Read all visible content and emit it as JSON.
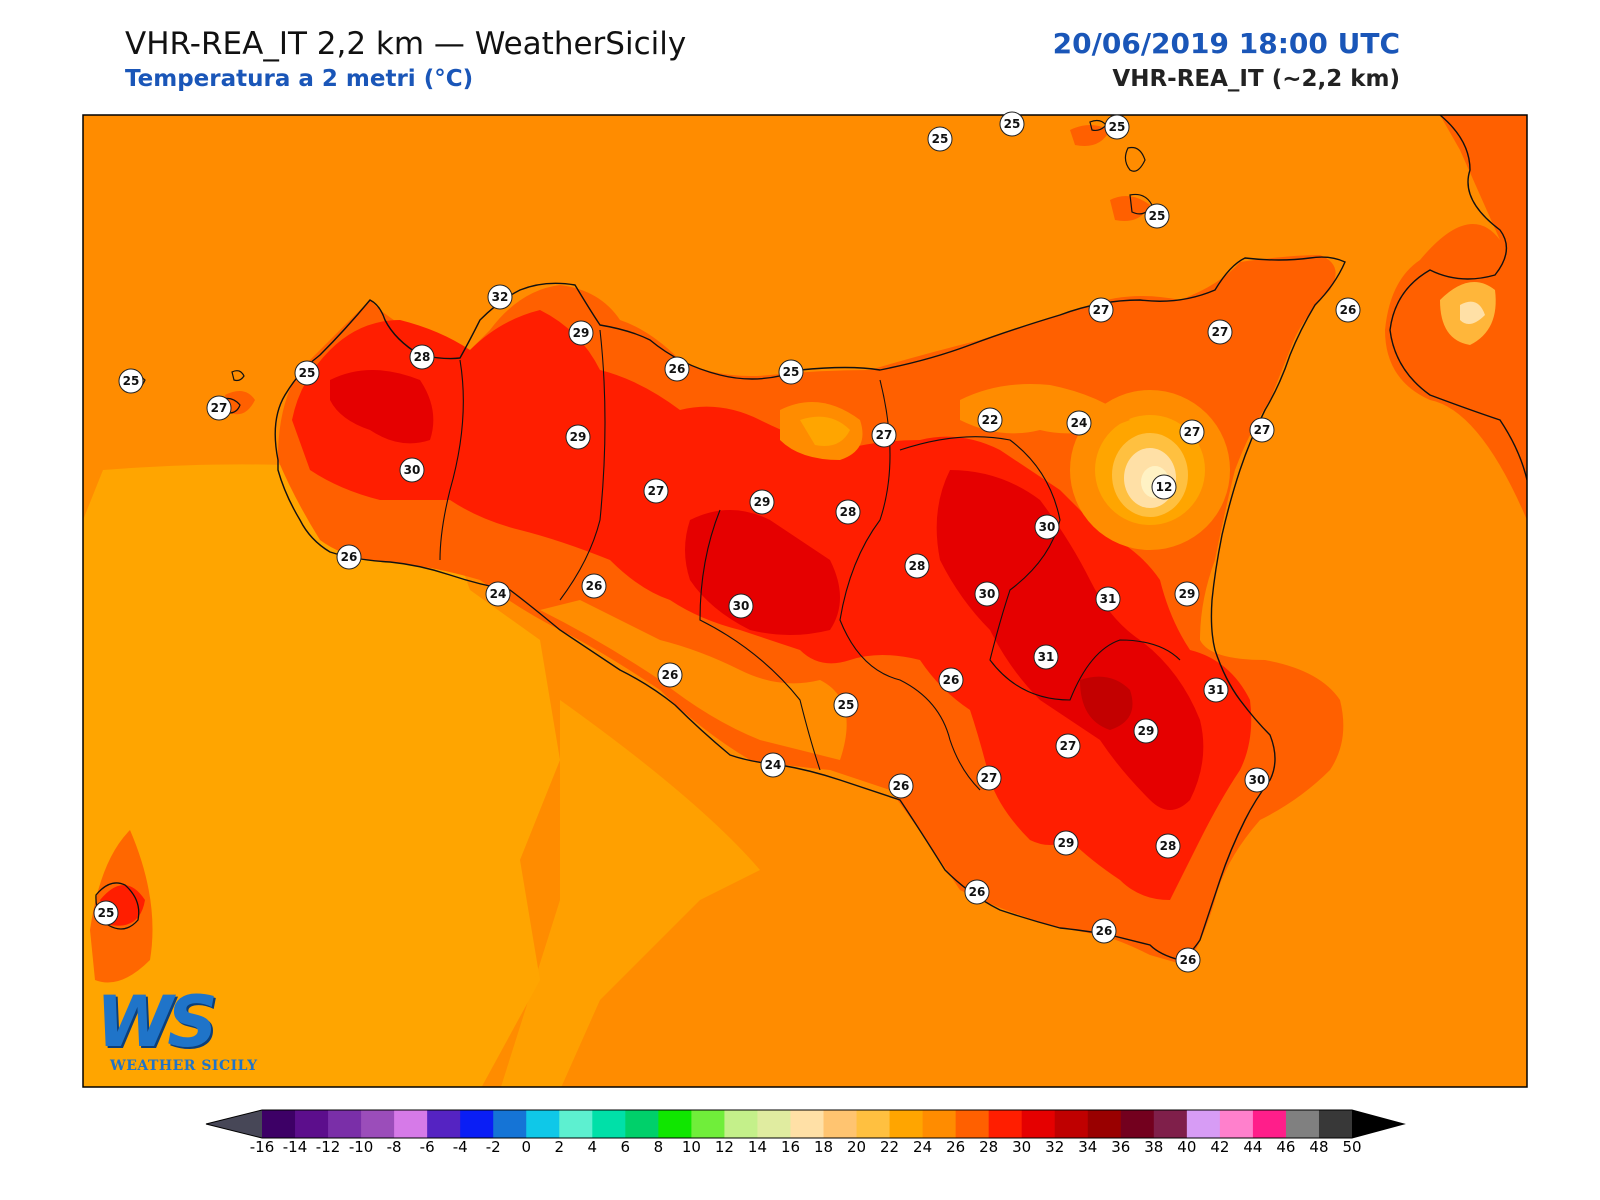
{
  "header": {
    "title": "VHR-REA_IT 2,2 km — WeatherSicily",
    "subtitle": "Temperatura a 2 metri (°C)",
    "date": "20/06/2019 18:00 UTC",
    "model": "VHR-REA_IT (~2,2 km)"
  },
  "logo": {
    "letters": "WS",
    "name": "WEATHER SICILY"
  },
  "colors": {
    "sea": "#ff8c00",
    "coast_sea": "#ffa500",
    "land": "#ff6000",
    "hot": "#f52010",
    "very_hot": "#d90010",
    "brand": "#1a56b8"
  },
  "colorbar": {
    "ticks": [
      "-16",
      "-14",
      "-12",
      "-10",
      "-8",
      "-6",
      "-4",
      "-2",
      "0",
      "2",
      "4",
      "6",
      "8",
      "10",
      "12",
      "14",
      "16",
      "18",
      "20",
      "22",
      "24",
      "26",
      "28",
      "30",
      "32",
      "34",
      "36",
      "38",
      "40",
      "42",
      "44",
      "46",
      "48",
      "50"
    ],
    "colors": [
      "#3d0066",
      "#5c0e8c",
      "#7a2fa8",
      "#9b4dba",
      "#d67ae8",
      "#5523c2",
      "#0a1ef5",
      "#1574d6",
      "#0fc8e8",
      "#5df0d0",
      "#00e0a8",
      "#00d06a",
      "#10e600",
      "#70ee3a",
      "#c4f08a",
      "#e0eca0",
      "#ffe0a6",
      "#ffc470",
      "#ffc040",
      "#ffa500",
      "#ff8c00",
      "#ff6000",
      "#ff1e00",
      "#e50000",
      "#bf0000",
      "#990000",
      "#73001e",
      "#7f1f4a",
      "#d79cf5",
      "#ff80cc",
      "#ff1e8a",
      "#808080",
      "#383838"
    ],
    "left_arrow_color": "#474757",
    "right_arrow_color": "#000000"
  },
  "stations": [
    {
      "v": "25"
    },
    {
      "v": "25"
    },
    {
      "v": "25"
    },
    {
      "v": "25"
    },
    {
      "v": "27"
    },
    {
      "v": "26"
    },
    {
      "v": "27"
    },
    {
      "v": "27"
    },
    {
      "v": "27"
    },
    {
      "v": "29"
    },
    {
      "v": "26"
    },
    {
      "v": "25"
    },
    {
      "v": "28"
    },
    {
      "v": "25"
    },
    {
      "v": "25"
    },
    {
      "v": "27"
    },
    {
      "v": "29"
    },
    {
      "v": "32"
    },
    {
      "v": "30"
    },
    {
      "v": "27"
    },
    {
      "v": "27"
    },
    {
      "v": "22"
    },
    {
      "v": "24"
    },
    {
      "v": "12"
    },
    {
      "v": "29"
    },
    {
      "v": "28"
    },
    {
      "v": "30"
    },
    {
      "v": "26"
    },
    {
      "v": "24"
    },
    {
      "v": "26"
    },
    {
      "v": "28"
    },
    {
      "v": "30"
    },
    {
      "v": "30"
    },
    {
      "v": "31"
    },
    {
      "v": "29"
    },
    {
      "v": "31"
    },
    {
      "v": "26"
    },
    {
      "v": "31"
    },
    {
      "v": "25"
    },
    {
      "v": "26"
    },
    {
      "v": "27"
    },
    {
      "v": "29"
    },
    {
      "v": "27"
    },
    {
      "v": "30"
    },
    {
      "v": "24"
    },
    {
      "v": "26"
    },
    {
      "v": "29"
    },
    {
      "v": "28"
    },
    {
      "v": "26"
    },
    {
      "v": "26"
    },
    {
      "v": "26"
    },
    {
      "v": "25"
    }
  ]
}
